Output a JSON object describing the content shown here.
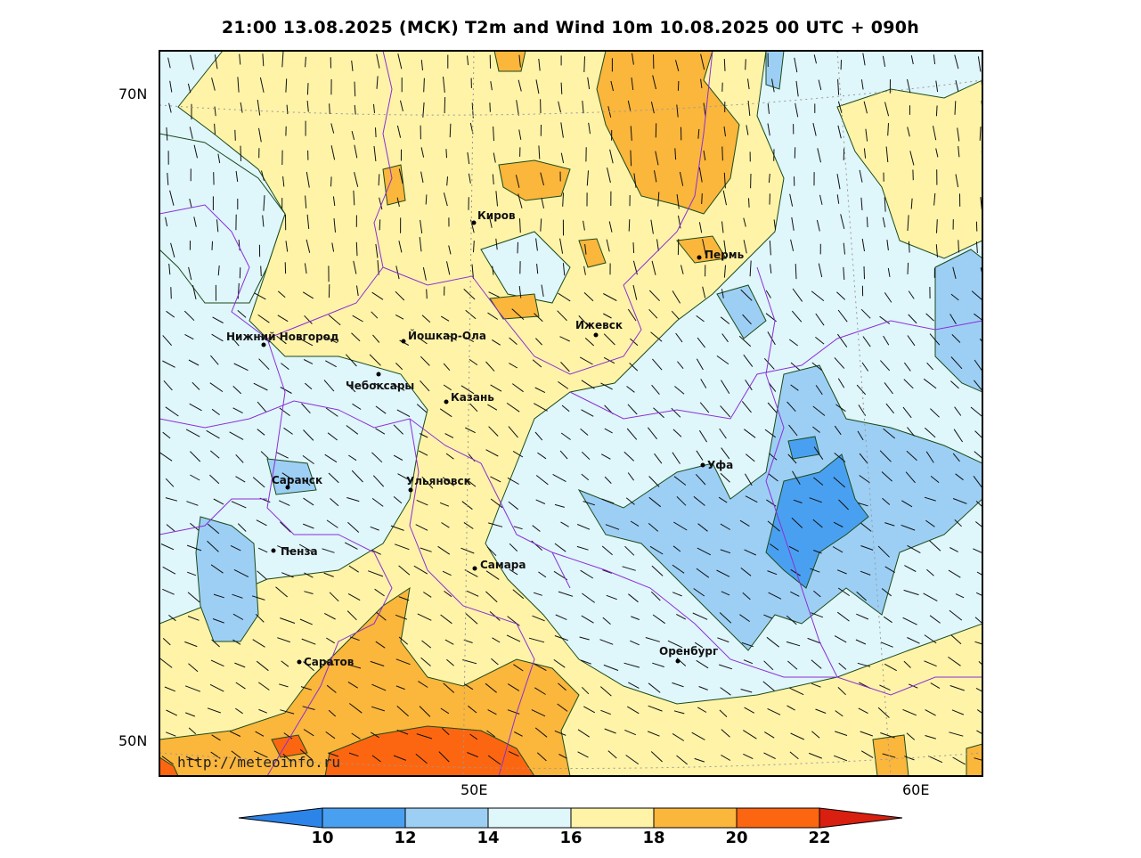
{
  "title": "21:00 13.08.2025 (МСК) T2m and Wind 10m 10.08.2025 00 UTC + 090h",
  "lat_labels": [
    "70N",
    "50N"
  ],
  "lon_labels": [
    "50E",
    "60E"
  ],
  "watermark": "http://meteoinfo.ru",
  "colorbar": {
    "labels": [
      "10",
      "12",
      "14",
      "16",
      "18",
      "20",
      "22"
    ],
    "colors": [
      "#2c84e8",
      "#4aa0f0",
      "#9dcff5",
      "#dff6fb",
      "#fff3a8",
      "#fbb63c",
      "#fd6610",
      "#d81f10"
    ]
  },
  "cities": [
    {
      "name": "Киров"
    },
    {
      "name": "Пермь"
    },
    {
      "name": "Ижевск"
    },
    {
      "name": "Нижний Новгород"
    },
    {
      "name": "Йошкар-Ола"
    },
    {
      "name": "Чебоксары"
    },
    {
      "name": "Казань"
    },
    {
      "name": "Уфа"
    },
    {
      "name": "Саранск"
    },
    {
      "name": "Ульяновск"
    },
    {
      "name": "Пенза"
    },
    {
      "name": "Самара"
    },
    {
      "name": "Оренбург"
    },
    {
      "name": "Саратов"
    }
  ]
}
